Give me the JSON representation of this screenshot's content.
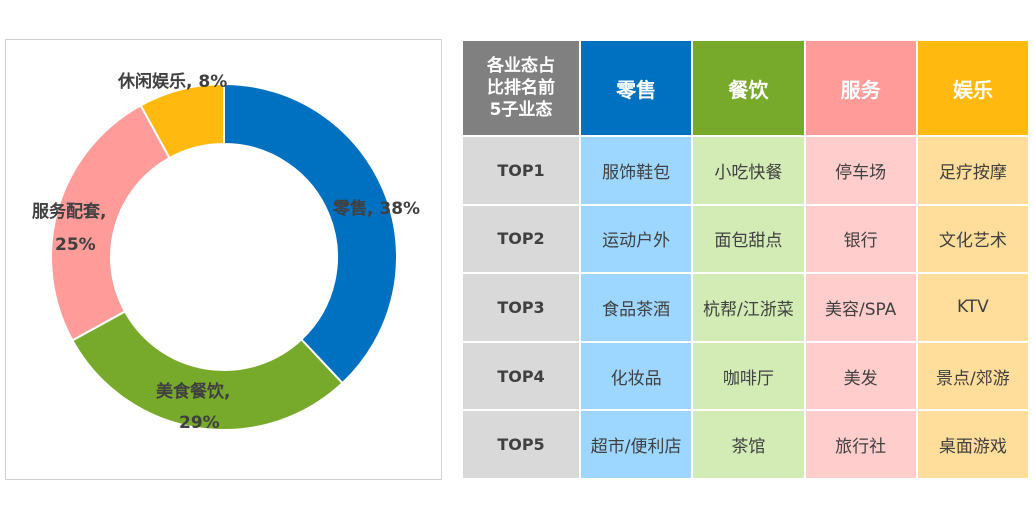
{
  "chart_data": {
    "type": "pie",
    "donut": true,
    "slices": [
      {
        "label": "零售",
        "value": 38,
        "display": "零售, 38%",
        "color": "#0070C0"
      },
      {
        "label": "美食餐饮",
        "value": 29,
        "display_line1": "美食餐饮,",
        "display_line2": "29%",
        "color": "#77A92B"
      },
      {
        "label": "服务配套",
        "value": 25,
        "display_line1": "服务配套,",
        "display_line2": "25%",
        "color": "#FF9B98"
      },
      {
        "label": "休闲娱乐",
        "value": 8,
        "display": "休闲娱乐, 8%",
        "color": "#FFB90F"
      }
    ]
  },
  "table": {
    "corner": [
      "各业态占",
      "比排名前",
      "5子业态"
    ],
    "headers": [
      {
        "label": "零售",
        "color": "#0070C0",
        "cell_color": "#9DD7FF"
      },
      {
        "label": "餐饮",
        "color": "#77A92B",
        "cell_color": "#D3ECB6"
      },
      {
        "label": "服务",
        "color": "#FF9B98",
        "cell_color": "#FFCECC"
      },
      {
        "label": "娱乐",
        "color": "#FFB90F",
        "cell_color": "#FFDD9A"
      }
    ],
    "rows": [
      {
        "rank": "TOP1",
        "cells": [
          "服饰鞋包",
          "小吃快餐",
          "停车场",
          "足疗按摩"
        ]
      },
      {
        "rank": "TOP2",
        "cells": [
          "运动户外",
          "面包甜点",
          "银行",
          "文化艺术"
        ]
      },
      {
        "rank": "TOP3",
        "cells": [
          "食品茶酒",
          "杭帮/江浙菜",
          "美容/SPA",
          "KTV"
        ]
      },
      {
        "rank": "TOP4",
        "cells": [
          "化妆品",
          "咖啡厅",
          "美发",
          "景点/郊游"
        ]
      },
      {
        "rank": "TOP5",
        "cells": [
          "超市/便利店",
          "茶馆",
          "旅行社",
          "桌面游戏"
        ]
      }
    ]
  }
}
